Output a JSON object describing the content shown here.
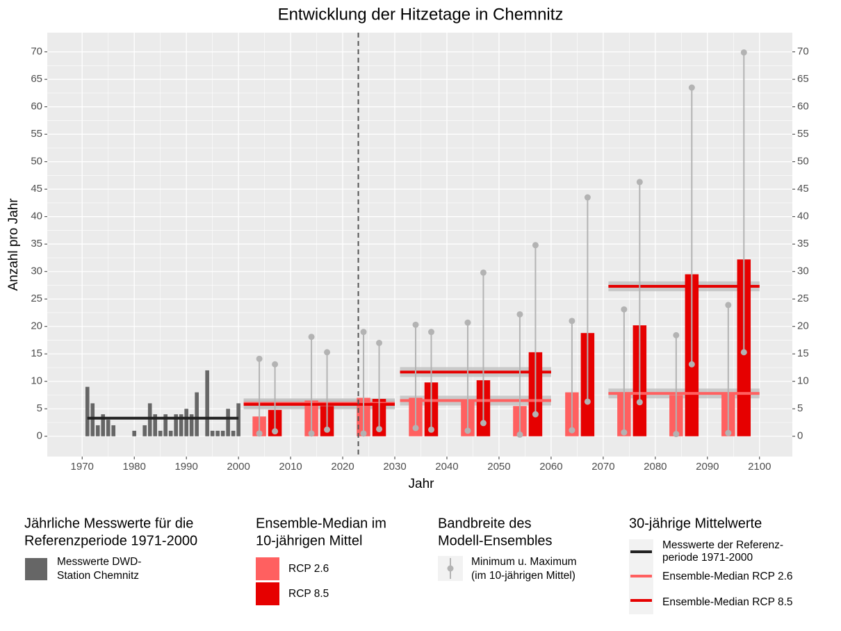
{
  "chart_data": {
    "type": "bar",
    "title": "Entwicklung der Hitzetage in Chemnitz",
    "x_label": "Jahr",
    "y_label": "Anzahl pro Jahr",
    "xlim": [
      1963.3,
      2106.3
    ],
    "ylim": [
      -3.7,
      73.5
    ],
    "y2lim": [
      -3.7,
      73.5
    ],
    "xticks": [
      1970,
      1980,
      1990,
      2000,
      2010,
      2020,
      2030,
      2040,
      2050,
      2060,
      2070,
      2080,
      2090,
      2100
    ],
    "yticks": [
      0,
      5,
      10,
      15,
      20,
      25,
      30,
      35,
      40,
      45,
      50,
      55,
      60,
      65,
      70
    ],
    "y2ticks": [
      0,
      5,
      10,
      15,
      20,
      25,
      30,
      35,
      40,
      45,
      50,
      55,
      60,
      65,
      70
    ],
    "grid": true,
    "reference_line": {
      "x": 2023,
      "style": "dashed",
      "color": "#555555"
    },
    "series": [
      {
        "legend_title": [
          "Jährliche Messwerte für die",
          "Referenzperiode 1971-2000"
        ],
        "name": [
          "Messwerte DWD-",
          "Station Chemnitz"
        ],
        "color": "#666666",
        "x": [
          1971,
          1972,
          1973,
          1974,
          1975,
          1976,
          1977,
          1978,
          1979,
          1980,
          1981,
          1982,
          1983,
          1984,
          1985,
          1986,
          1987,
          1988,
          1989,
          1990,
          1991,
          1992,
          1993,
          1994,
          1995,
          1996,
          1997,
          1998,
          1999,
          2000
        ],
        "values": [
          9,
          6,
          2,
          4,
          3,
          2,
          0,
          0,
          0,
          1,
          0,
          2,
          6,
          4,
          1,
          4,
          1,
          4,
          4,
          5,
          4,
          8,
          0,
          12,
          1,
          1,
          1,
          5,
          1,
          6
        ]
      },
      {
        "legend_title": [
          "Ensemble-Median im",
          "10-jährigen Mittel"
        ],
        "name": "RCP 2.6",
        "color": "#ff6060",
        "x": [
          2004,
          2014,
          2024,
          2034,
          2044,
          2054,
          2064,
          2074,
          2084,
          2094
        ],
        "values": [
          3.6,
          6.5,
          7,
          7,
          6.5,
          5.5,
          8,
          7.8,
          7.5,
          7.8
        ],
        "min": [
          0.5,
          0.5,
          0.5,
          1.5,
          1,
          0.3,
          1.1,
          0.7,
          0.4,
          0.6
        ],
        "max": [
          14.1,
          18.1,
          19,
          20.3,
          20.7,
          22.2,
          21,
          23.1,
          18.4,
          23.9
        ]
      },
      {
        "name": "RCP 8.5",
        "color": "#e60000",
        "x": [
          2007,
          2017,
          2027,
          2037,
          2047,
          2057,
          2067,
          2077,
          2087,
          2097
        ],
        "values": [
          4.8,
          5.5,
          6.8,
          9.8,
          10.2,
          15.3,
          18.8,
          20.2,
          29.5,
          32.2
        ],
        "min": [
          0.9,
          1.2,
          1.3,
          1.2,
          2.4,
          4,
          6.3,
          6.2,
          13.1,
          15.3
        ],
        "max": [
          13.1,
          15.3,
          17,
          19,
          29.8,
          34.8,
          43.5,
          46.3,
          63.5,
          69.9
        ]
      }
    ],
    "range_legend": {
      "title": [
        "Bandbreite des",
        "Modell-Ensembles"
      ],
      "label": [
        "Minimum u. Maximum",
        "(im 10-jährigen Mittel)"
      ],
      "color": "#b3b3b3"
    },
    "means": {
      "title": "30-jährige Mittelwerte",
      "band_color": "#bdbdbd",
      "series": [
        {
          "name": [
            "Messwerte der Referenz-",
            "periode 1971-2000"
          ],
          "color": "#222222",
          "periods": [
            [
              1971,
              2000
            ]
          ],
          "values": [
            3.3
          ]
        },
        {
          "name": "Ensemble-Median RCP 2.6",
          "color": "#ff6060",
          "periods": [
            [
              2001,
              2030
            ],
            [
              2031,
              2060
            ],
            [
              2071,
              2100
            ]
          ],
          "values": [
            6,
            6.5,
            7.8
          ]
        },
        {
          "name": "Ensemble-Median RCP 8.5",
          "color": "#e60000",
          "periods": [
            [
              2001,
              2030
            ],
            [
              2031,
              2060
            ],
            [
              2071,
              2100
            ]
          ],
          "values": [
            5.8,
            11.7,
            27.3
          ]
        }
      ]
    }
  }
}
